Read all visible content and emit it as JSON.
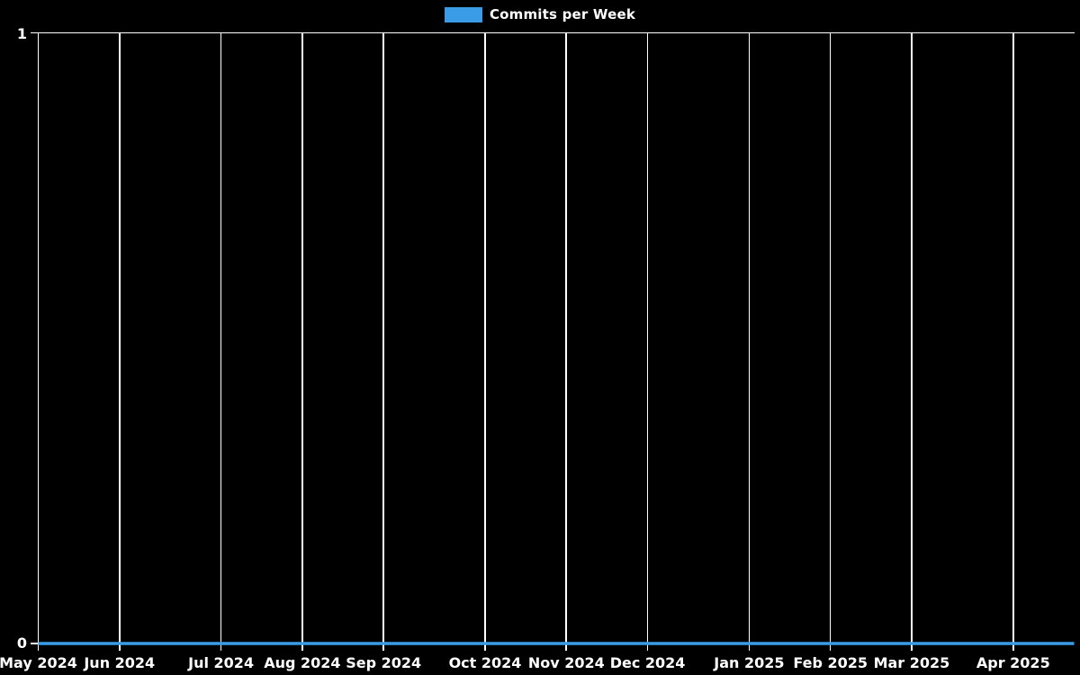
{
  "legend": {
    "label": "Commits per Week",
    "swatch_color": "#3a9ce6"
  },
  "colors": {
    "background": "#000000",
    "grid": "#ffffff",
    "text": "#ffffff",
    "line": "#3a9ce6"
  },
  "y_axis": {
    "max_label": "1",
    "min_label": "0"
  },
  "chart_data": {
    "type": "line",
    "title": "",
    "xlabel": "",
    "ylabel": "",
    "ylim": [
      0,
      1
    ],
    "yticks": [
      0,
      1
    ],
    "grid": "vertical-only",
    "legend_position": "top-center",
    "background": "#000000",
    "x_unit": "week",
    "weeks_total": 52,
    "month_ticks": [
      {
        "label": "May 2024",
        "week": 0
      },
      {
        "label": "Jun 2024",
        "week": 4
      },
      {
        "label": "Jul 2024",
        "week": 9
      },
      {
        "label": "Aug 2024",
        "week": 13
      },
      {
        "label": "Sep 2024",
        "week": 17
      },
      {
        "label": "Oct 2024",
        "week": 22
      },
      {
        "label": "Nov 2024",
        "week": 26
      },
      {
        "label": "Dec 2024",
        "week": 30
      },
      {
        "label": "Jan 2025",
        "week": 35
      },
      {
        "label": "Feb 2025",
        "week": 39
      },
      {
        "label": "Mar 2025",
        "week": 43
      },
      {
        "label": "Apr 2025",
        "week": 48
      }
    ],
    "series": [
      {
        "name": "Commits per Week",
        "color": "#3a9ce6",
        "values": [
          0,
          0,
          0,
          0,
          0,
          0,
          0,
          0,
          0,
          0,
          0,
          0,
          0,
          0,
          0,
          0,
          0,
          0,
          0,
          0,
          0,
          0,
          0,
          0,
          0,
          0,
          0,
          0,
          0,
          0,
          0,
          0,
          0,
          0,
          0,
          0,
          0,
          0,
          0,
          0,
          0,
          0,
          0,
          0,
          0,
          0,
          0,
          0,
          0,
          0,
          0,
          0
        ]
      }
    ]
  }
}
